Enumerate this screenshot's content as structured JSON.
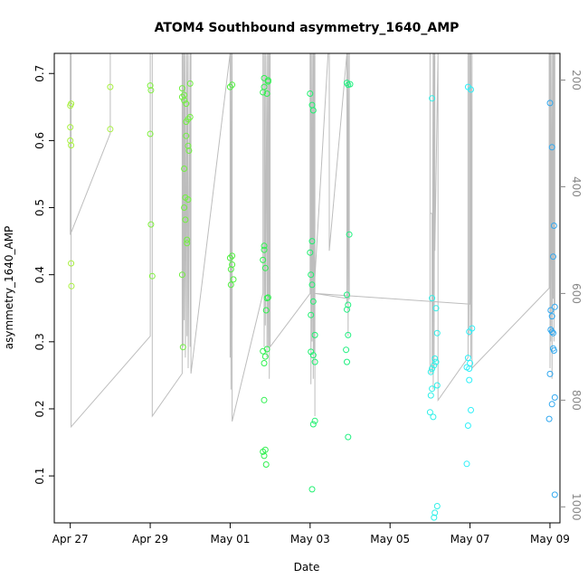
{
  "chart_data": {
    "type": "scatter",
    "title": "ATOM4 Southbound asymmetry_1640_AMP",
    "xlabel": "Date",
    "ylabel": "asymmetry_1640_AMP",
    "x_ticks": [
      "Apr 27",
      "Apr 29",
      "May 01",
      "May 03",
      "May 05",
      "May 07",
      "May 09"
    ],
    "xlim": [
      26.6,
      39.25
    ],
    "y_ticks": [
      0.1,
      0.2,
      0.3,
      0.4,
      0.5,
      0.6,
      0.7
    ],
    "ylim": [
      0.03,
      0.73
    ],
    "y2_ticks": [
      200,
      400,
      600,
      800,
      1000
    ],
    "y2lim": [
      1030,
      150
    ],
    "grid": false,
    "points": [
      {
        "x": 27.0,
        "y": 0.652,
        "c": "#a8f040"
      },
      {
        "x": 27.02,
        "y": 0.655,
        "c": "#a8f040"
      },
      {
        "x": 27.0,
        "y": 0.62,
        "c": "#a8f040"
      },
      {
        "x": 27.0,
        "y": 0.6,
        "c": "#a8f040"
      },
      {
        "x": 27.02,
        "y": 0.593,
        "c": "#a8f040"
      },
      {
        "x": 27.02,
        "y": 0.417,
        "c": "#a8f040"
      },
      {
        "x": 27.03,
        "y": 0.383,
        "c": "#a8f040"
      },
      {
        "x": 28.0,
        "y": 0.68,
        "c": "#a8f040"
      },
      {
        "x": 28.0,
        "y": 0.617,
        "c": "#a8f040"
      },
      {
        "x": 29.0,
        "y": 0.682,
        "c": "#80f040"
      },
      {
        "x": 29.02,
        "y": 0.675,
        "c": "#80f040"
      },
      {
        "x": 29.0,
        "y": 0.61,
        "c": "#80f040"
      },
      {
        "x": 29.02,
        "y": 0.475,
        "c": "#80f040"
      },
      {
        "x": 29.05,
        "y": 0.398,
        "c": "#80f040"
      },
      {
        "x": 29.8,
        "y": 0.678,
        "c": "#70f040"
      },
      {
        "x": 29.85,
        "y": 0.668,
        "c": "#70f040"
      },
      {
        "x": 29.8,
        "y": 0.665,
        "c": "#70f040"
      },
      {
        "x": 29.85,
        "y": 0.66,
        "c": "#70f040"
      },
      {
        "x": 29.9,
        "y": 0.655,
        "c": "#70f040"
      },
      {
        "x": 30.0,
        "y": 0.685,
        "c": "#70f040"
      },
      {
        "x": 29.95,
        "y": 0.632,
        "c": "#70f040"
      },
      {
        "x": 30.0,
        "y": 0.635,
        "c": "#70f040"
      },
      {
        "x": 29.9,
        "y": 0.628,
        "c": "#70f040"
      },
      {
        "x": 29.9,
        "y": 0.607,
        "c": "#70f040"
      },
      {
        "x": 29.95,
        "y": 0.592,
        "c": "#70f040"
      },
      {
        "x": 29.97,
        "y": 0.585,
        "c": "#70f040"
      },
      {
        "x": 29.85,
        "y": 0.558,
        "c": "#70f040"
      },
      {
        "x": 29.88,
        "y": 0.515,
        "c": "#70f040"
      },
      {
        "x": 29.95,
        "y": 0.512,
        "c": "#70f040"
      },
      {
        "x": 29.85,
        "y": 0.5,
        "c": "#70f040"
      },
      {
        "x": 29.88,
        "y": 0.482,
        "c": "#70f040"
      },
      {
        "x": 29.92,
        "y": 0.452,
        "c": "#70f040"
      },
      {
        "x": 29.92,
        "y": 0.447,
        "c": "#70f040"
      },
      {
        "x": 29.8,
        "y": 0.4,
        "c": "#70f040"
      },
      {
        "x": 29.82,
        "y": 0.292,
        "c": "#70f040"
      },
      {
        "x": 31.0,
        "y": 0.68,
        "c": "#50f040"
      },
      {
        "x": 31.05,
        "y": 0.683,
        "c": "#50f040"
      },
      {
        "x": 31.0,
        "y": 0.425,
        "c": "#50f040"
      },
      {
        "x": 31.05,
        "y": 0.428,
        "c": "#50f040"
      },
      {
        "x": 31.05,
        "y": 0.415,
        "c": "#50f040"
      },
      {
        "x": 31.02,
        "y": 0.408,
        "c": "#50f040"
      },
      {
        "x": 31.08,
        "y": 0.393,
        "c": "#50f040"
      },
      {
        "x": 31.02,
        "y": 0.385,
        "c": "#50f040"
      },
      {
        "x": 31.85,
        "y": 0.693,
        "c": "#30f050"
      },
      {
        "x": 31.95,
        "y": 0.69,
        "c": "#30f050"
      },
      {
        "x": 31.95,
        "y": 0.688,
        "c": "#30f050"
      },
      {
        "x": 31.85,
        "y": 0.68,
        "c": "#30f050"
      },
      {
        "x": 31.82,
        "y": 0.672,
        "c": "#30f050"
      },
      {
        "x": 31.92,
        "y": 0.67,
        "c": "#30f050"
      },
      {
        "x": 31.85,
        "y": 0.443,
        "c": "#30f050"
      },
      {
        "x": 31.85,
        "y": 0.437,
        "c": "#30f050"
      },
      {
        "x": 31.82,
        "y": 0.422,
        "c": "#30f050"
      },
      {
        "x": 31.88,
        "y": 0.41,
        "c": "#30f050"
      },
      {
        "x": 31.95,
        "y": 0.366,
        "c": "#30f050"
      },
      {
        "x": 31.92,
        "y": 0.365,
        "c": "#30f050"
      },
      {
        "x": 31.9,
        "y": 0.347,
        "c": "#30f050"
      },
      {
        "x": 31.82,
        "y": 0.286,
        "c": "#30f050"
      },
      {
        "x": 31.92,
        "y": 0.289,
        "c": "#30f050"
      },
      {
        "x": 31.88,
        "y": 0.278,
        "c": "#30f050"
      },
      {
        "x": 31.85,
        "y": 0.268,
        "c": "#30f050"
      },
      {
        "x": 31.85,
        "y": 0.213,
        "c": "#30f050"
      },
      {
        "x": 31.82,
        "y": 0.136,
        "c": "#30f050"
      },
      {
        "x": 31.88,
        "y": 0.139,
        "c": "#30f050"
      },
      {
        "x": 31.85,
        "y": 0.13,
        "c": "#30f050"
      },
      {
        "x": 31.9,
        "y": 0.117,
        "c": "#30f050"
      },
      {
        "x": 33.0,
        "y": 0.67,
        "c": "#20f070"
      },
      {
        "x": 33.05,
        "y": 0.653,
        "c": "#20f070"
      },
      {
        "x": 33.08,
        "y": 0.645,
        "c": "#20f070"
      },
      {
        "x": 33.05,
        "y": 0.45,
        "c": "#20f070"
      },
      {
        "x": 33.0,
        "y": 0.433,
        "c": "#20f070"
      },
      {
        "x": 33.02,
        "y": 0.4,
        "c": "#20f070"
      },
      {
        "x": 33.05,
        "y": 0.385,
        "c": "#20f070"
      },
      {
        "x": 33.08,
        "y": 0.36,
        "c": "#20f070"
      },
      {
        "x": 33.02,
        "y": 0.34,
        "c": "#20f070"
      },
      {
        "x": 33.12,
        "y": 0.31,
        "c": "#20f070"
      },
      {
        "x": 33.02,
        "y": 0.285,
        "c": "#20f070"
      },
      {
        "x": 33.08,
        "y": 0.28,
        "c": "#20f070"
      },
      {
        "x": 33.12,
        "y": 0.27,
        "c": "#20f070"
      },
      {
        "x": 33.12,
        "y": 0.182,
        "c": "#20f070"
      },
      {
        "x": 33.08,
        "y": 0.177,
        "c": "#20f070"
      },
      {
        "x": 33.05,
        "y": 0.08,
        "c": "#20f070"
      },
      {
        "x": 33.92,
        "y": 0.686,
        "c": "#20f080"
      },
      {
        "x": 34.0,
        "y": 0.684,
        "c": "#20f080"
      },
      {
        "x": 33.95,
        "y": 0.683,
        "c": "#20f080"
      },
      {
        "x": 33.98,
        "y": 0.46,
        "c": "#20f080"
      },
      {
        "x": 33.92,
        "y": 0.37,
        "c": "#20f080"
      },
      {
        "x": 33.95,
        "y": 0.355,
        "c": "#20f080"
      },
      {
        "x": 33.92,
        "y": 0.348,
        "c": "#20f080"
      },
      {
        "x": 33.95,
        "y": 0.31,
        "c": "#20f080"
      },
      {
        "x": 33.9,
        "y": 0.288,
        "c": "#20f080"
      },
      {
        "x": 33.92,
        "y": 0.27,
        "c": "#20f080"
      },
      {
        "x": 33.95,
        "y": 0.158,
        "c": "#20f080"
      },
      {
        "x": 36.05,
        "y": 0.663,
        "c": "#30f0e8"
      },
      {
        "x": 36.05,
        "y": 0.365,
        "c": "#30f0e8"
      },
      {
        "x": 36.15,
        "y": 0.35,
        "c": "#30f0e8"
      },
      {
        "x": 36.18,
        "y": 0.313,
        "c": "#30f0e8"
      },
      {
        "x": 36.12,
        "y": 0.275,
        "c": "#30f0e8"
      },
      {
        "x": 36.1,
        "y": 0.265,
        "c": "#30f0e8"
      },
      {
        "x": 36.05,
        "y": 0.26,
        "c": "#30f0e8"
      },
      {
        "x": 36.02,
        "y": 0.255,
        "c": "#30f0e8"
      },
      {
        "x": 36.15,
        "y": 0.27,
        "c": "#30f0e8"
      },
      {
        "x": 36.05,
        "y": 0.23,
        "c": "#30f0e8"
      },
      {
        "x": 36.18,
        "y": 0.235,
        "c": "#30f0e8"
      },
      {
        "x": 36.02,
        "y": 0.22,
        "c": "#30f0e8"
      },
      {
        "x": 36.0,
        "y": 0.195,
        "c": "#30f0e8"
      },
      {
        "x": 36.08,
        "y": 0.188,
        "c": "#30f0e8"
      },
      {
        "x": 36.18,
        "y": 0.055,
        "c": "#30f0e8"
      },
      {
        "x": 36.12,
        "y": 0.045,
        "c": "#30f0e8"
      },
      {
        "x": 36.1,
        "y": 0.038,
        "c": "#30f0e8"
      },
      {
        "x": 36.95,
        "y": 0.68,
        "c": "#30f0f8"
      },
      {
        "x": 37.02,
        "y": 0.676,
        "c": "#30f0f8"
      },
      {
        "x": 37.05,
        "y": 0.32,
        "c": "#30f0f8"
      },
      {
        "x": 36.98,
        "y": 0.315,
        "c": "#30f0f8"
      },
      {
        "x": 36.95,
        "y": 0.276,
        "c": "#30f0f8"
      },
      {
        "x": 37.0,
        "y": 0.268,
        "c": "#30f0f8"
      },
      {
        "x": 36.92,
        "y": 0.262,
        "c": "#30f0f8"
      },
      {
        "x": 36.98,
        "y": 0.26,
        "c": "#30f0f8"
      },
      {
        "x": 36.98,
        "y": 0.243,
        "c": "#30f0f8"
      },
      {
        "x": 37.02,
        "y": 0.198,
        "c": "#30f0f8"
      },
      {
        "x": 36.95,
        "y": 0.175,
        "c": "#30f0f8"
      },
      {
        "x": 36.92,
        "y": 0.118,
        "c": "#30f0f8"
      },
      {
        "x": 39.0,
        "y": 0.656,
        "c": "#30a8f0"
      },
      {
        "x": 39.05,
        "y": 0.59,
        "c": "#30a8f0"
      },
      {
        "x": 39.1,
        "y": 0.473,
        "c": "#30a8f0"
      },
      {
        "x": 39.08,
        "y": 0.427,
        "c": "#30a8f0"
      },
      {
        "x": 39.12,
        "y": 0.352,
        "c": "#30a8f0"
      },
      {
        "x": 39.02,
        "y": 0.347,
        "c": "#30a8f0"
      },
      {
        "x": 39.05,
        "y": 0.338,
        "c": "#30a8f0"
      },
      {
        "x": 39.02,
        "y": 0.318,
        "c": "#30a8f0"
      },
      {
        "x": 39.05,
        "y": 0.315,
        "c": "#30a8f0"
      },
      {
        "x": 39.08,
        "y": 0.313,
        "c": "#30a8f0"
      },
      {
        "x": 39.08,
        "y": 0.29,
        "c": "#30a8f0"
      },
      {
        "x": 39.1,
        "y": 0.287,
        "c": "#30a8f0"
      },
      {
        "x": 39.0,
        "y": 0.252,
        "c": "#30a8f0"
      },
      {
        "x": 39.12,
        "y": 0.217,
        "c": "#30a8f0"
      },
      {
        "x": 39.05,
        "y": 0.207,
        "c": "#30a8f0"
      },
      {
        "x": 38.98,
        "y": 0.185,
        "c": "#30a8f0"
      },
      {
        "x": 39.12,
        "y": 0.072,
        "c": "#30a8f0"
      }
    ],
    "trace": [
      {
        "x": 27.0,
        "y2": 150
      },
      {
        "x": 27.0,
        "y2": 490
      },
      {
        "x": 28.0,
        "y2": 300
      },
      {
        "x": 28.0,
        "y2": 150
      },
      {
        "x": 28.0,
        "y2": 150
      },
      {
        "x": 27.02,
        "y2": 150
      },
      {
        "x": 27.02,
        "y2": 850
      },
      {
        "x": 29.0,
        "y2": 680
      },
      {
        "x": 29.0,
        "y2": 150
      },
      {
        "x": 29.0,
        "y2": 150
      },
      {
        "x": 29.05,
        "y2": 150
      },
      {
        "x": 29.05,
        "y2": 830
      },
      {
        "x": 29.8,
        "y2": 750
      },
      {
        "x": 29.8,
        "y2": 150
      },
      {
        "x": 29.82,
        "y2": 150
      },
      {
        "x": 29.82,
        "y2": 700
      },
      {
        "x": 29.85,
        "y2": 150
      },
      {
        "x": 29.85,
        "y2": 650
      },
      {
        "x": 29.88,
        "y2": 150
      },
      {
        "x": 29.88,
        "y2": 720
      },
      {
        "x": 29.92,
        "y2": 150
      },
      {
        "x": 29.92,
        "y2": 680
      },
      {
        "x": 29.95,
        "y2": 150
      },
      {
        "x": 29.95,
        "y2": 740
      },
      {
        "x": 30.0,
        "y2": 150
      },
      {
        "x": 30.0,
        "y2": 700
      },
      {
        "x": 30.02,
        "y2": 150
      },
      {
        "x": 30.02,
        "y2": 750
      },
      {
        "x": 31.0,
        "y2": 150
      },
      {
        "x": 31.0,
        "y2": 720
      },
      {
        "x": 31.02,
        "y2": 150
      },
      {
        "x": 31.02,
        "y2": 780
      },
      {
        "x": 31.05,
        "y2": 150
      },
      {
        "x": 31.05,
        "y2": 840
      },
      {
        "x": 31.82,
        "y2": 600
      },
      {
        "x": 31.82,
        "y2": 150
      },
      {
        "x": 31.85,
        "y2": 150
      },
      {
        "x": 31.85,
        "y2": 700
      },
      {
        "x": 31.88,
        "y2": 150
      },
      {
        "x": 31.88,
        "y2": 660
      },
      {
        "x": 31.92,
        "y2": 150
      },
      {
        "x": 31.92,
        "y2": 720
      },
      {
        "x": 31.95,
        "y2": 150
      },
      {
        "x": 31.95,
        "y2": 700
      },
      {
        "x": 31.98,
        "y2": 150
      },
      {
        "x": 31.98,
        "y2": 760
      },
      {
        "x": 32.0,
        "y2": 150
      },
      {
        "x": 32.0,
        "y2": 700
      },
      {
        "x": 33.0,
        "y2": 600
      },
      {
        "x": 33.0,
        "y2": 150
      },
      {
        "x": 33.02,
        "y2": 150
      },
      {
        "x": 33.02,
        "y2": 770
      },
      {
        "x": 33.05,
        "y2": 150
      },
      {
        "x": 33.05,
        "y2": 690
      },
      {
        "x": 33.08,
        "y2": 150
      },
      {
        "x": 33.08,
        "y2": 760
      },
      {
        "x": 33.1,
        "y2": 150
      },
      {
        "x": 33.1,
        "y2": 710
      },
      {
        "x": 33.12,
        "y2": 150
      },
      {
        "x": 33.12,
        "y2": 830
      },
      {
        "x": 33.12,
        "y2": 570
      },
      {
        "x": 33.45,
        "y2": 150
      },
      {
        "x": 33.48,
        "y2": 150
      },
      {
        "x": 33.48,
        "y2": 520
      },
      {
        "x": 33.92,
        "y2": 150
      },
      {
        "x": 33.92,
        "y2": 620
      },
      {
        "x": 33.95,
        "y2": 150
      },
      {
        "x": 33.95,
        "y2": 680
      },
      {
        "x": 33.98,
        "y2": 150
      },
      {
        "x": 33.98,
        "y2": 610
      },
      {
        "x": 33.12,
        "y2": 600
      },
      {
        "x": 37.0,
        "y2": 620
      },
      {
        "x": 37.0,
        "y2": 150
      },
      {
        "x": 37.0,
        "y2": 150
      },
      {
        "x": 36.0,
        "y2": 150
      },
      {
        "x": 36.0,
        "y2": 750
      },
      {
        "x": 36.0,
        "y2": 450
      },
      {
        "x": 36.05,
        "y2": 450
      },
      {
        "x": 36.05,
        "y2": 750
      },
      {
        "x": 36.08,
        "y2": 150
      },
      {
        "x": 36.08,
        "y2": 780
      },
      {
        "x": 36.1,
        "y2": 150
      },
      {
        "x": 36.1,
        "y2": 740
      },
      {
        "x": 36.12,
        "y2": 150
      },
      {
        "x": 36.12,
        "y2": 520
      },
      {
        "x": 36.2,
        "y2": 150
      },
      {
        "x": 36.2,
        "y2": 800
      },
      {
        "x": 36.95,
        "y2": 720
      },
      {
        "x": 36.95,
        "y2": 150
      },
      {
        "x": 36.98,
        "y2": 150
      },
      {
        "x": 36.98,
        "y2": 680
      },
      {
        "x": 37.02,
        "y2": 150
      },
      {
        "x": 37.02,
        "y2": 720
      },
      {
        "x": 37.05,
        "y2": 150
      },
      {
        "x": 37.05,
        "y2": 740
      },
      {
        "x": 38.98,
        "y2": 590
      },
      {
        "x": 38.98,
        "y2": 150
      },
      {
        "x": 39.0,
        "y2": 150
      },
      {
        "x": 39.0,
        "y2": 740
      },
      {
        "x": 39.02,
        "y2": 150
      },
      {
        "x": 39.02,
        "y2": 690
      },
      {
        "x": 39.05,
        "y2": 150
      },
      {
        "x": 39.05,
        "y2": 760
      },
      {
        "x": 39.08,
        "y2": 150
      },
      {
        "x": 39.08,
        "y2": 610
      },
      {
        "x": 39.1,
        "y2": 150
      },
      {
        "x": 39.1,
        "y2": 690
      },
      {
        "x": 39.12,
        "y2": 150
      },
      {
        "x": 39.12,
        "y2": 620
      }
    ]
  }
}
